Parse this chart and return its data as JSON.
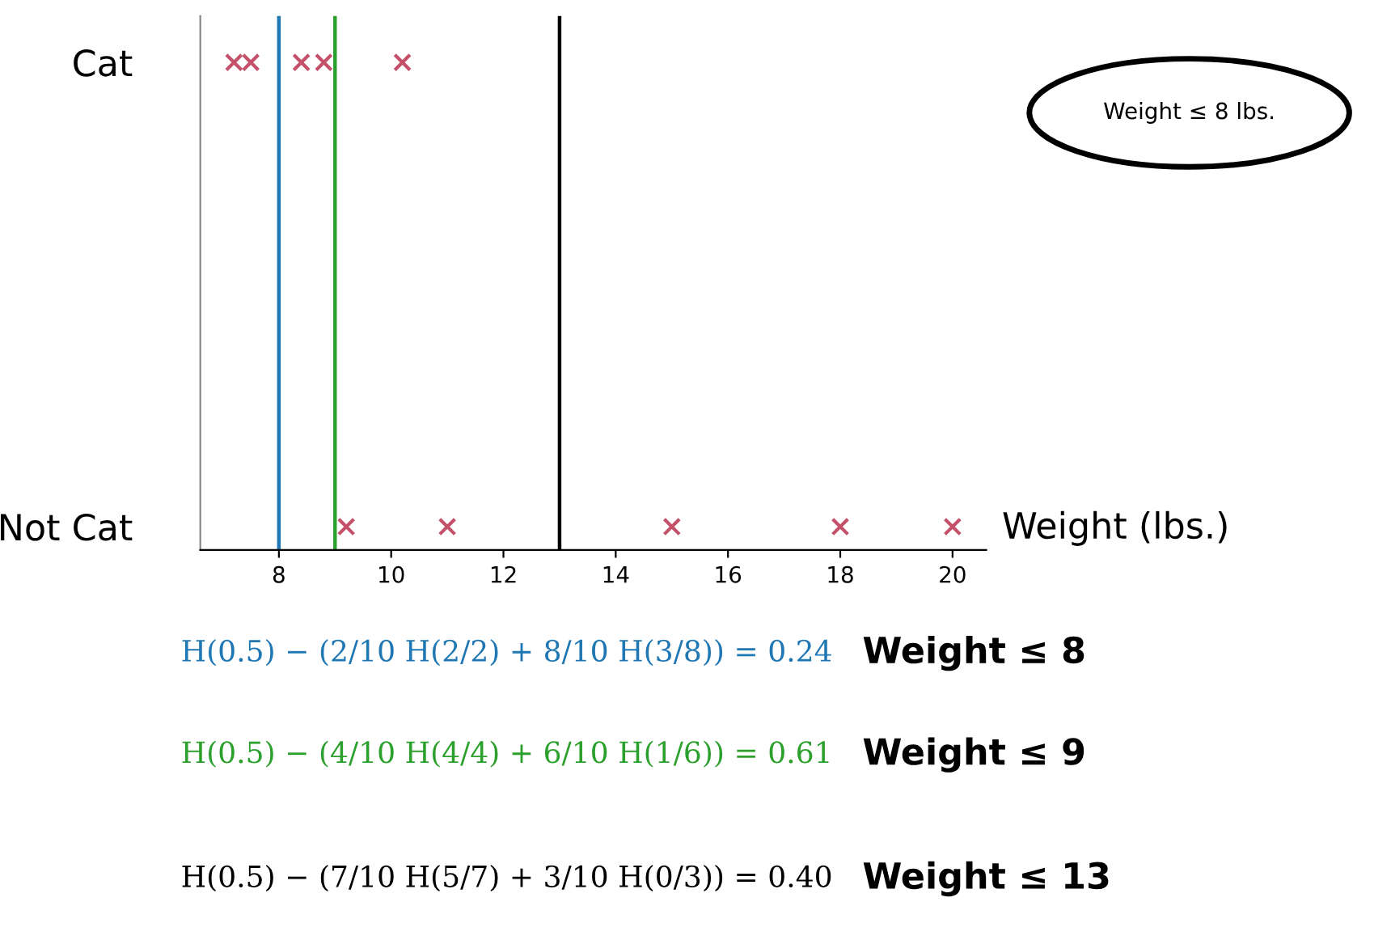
{
  "chart_data": {
    "type": "scatter",
    "xlabel": "Weight (lbs.)",
    "orientation": "horizontal",
    "categories": [
      "Cat",
      "Not Cat"
    ],
    "series": [
      {
        "color": "#c4506a",
        "values": [
          7.2,
          9.2
        ]
      },
      {
        "color": "#c4506a",
        "values": [
          7.5,
          11
        ]
      },
      {
        "color": "#c4506a",
        "values": [
          8.4,
          15
        ]
      },
      {
        "color": "#c4506a",
        "values": [
          8.8,
          18
        ]
      },
      {
        "color": "#c4506a",
        "values": [
          10.2,
          20
        ]
      }
    ],
    "marker": "cross",
    "xlim": [
      6.6,
      20.6
    ],
    "xticks": [
      8,
      10,
      12,
      14,
      16,
      18,
      20
    ],
    "ref_lines": [
      {
        "axis": "x",
        "value": 8,
        "color": "#1f77b4"
      },
      {
        "axis": "x",
        "value": 9,
        "color": "#2ca02c"
      },
      {
        "axis": "x",
        "value": 13,
        "color": "#000000"
      }
    ],
    "annotations": [
      "Weight ≤ 8 lbs.",
      "H(0.5) − (2/10 H(2/2) + 8/10 H(3/8)) = 0.24",
      "Weight ≤ 8",
      "H(0.5) − (4/10 H(4/4) + 6/10 H(1/6)) = 0.61",
      "Weight ≤ 9",
      "H(0.5) − (7/10 H(5/7) + 3/10 H(0/3)) = 0.40",
      "Weight ≤ 13"
    ],
    "grid": false,
    "legend": false
  }
}
